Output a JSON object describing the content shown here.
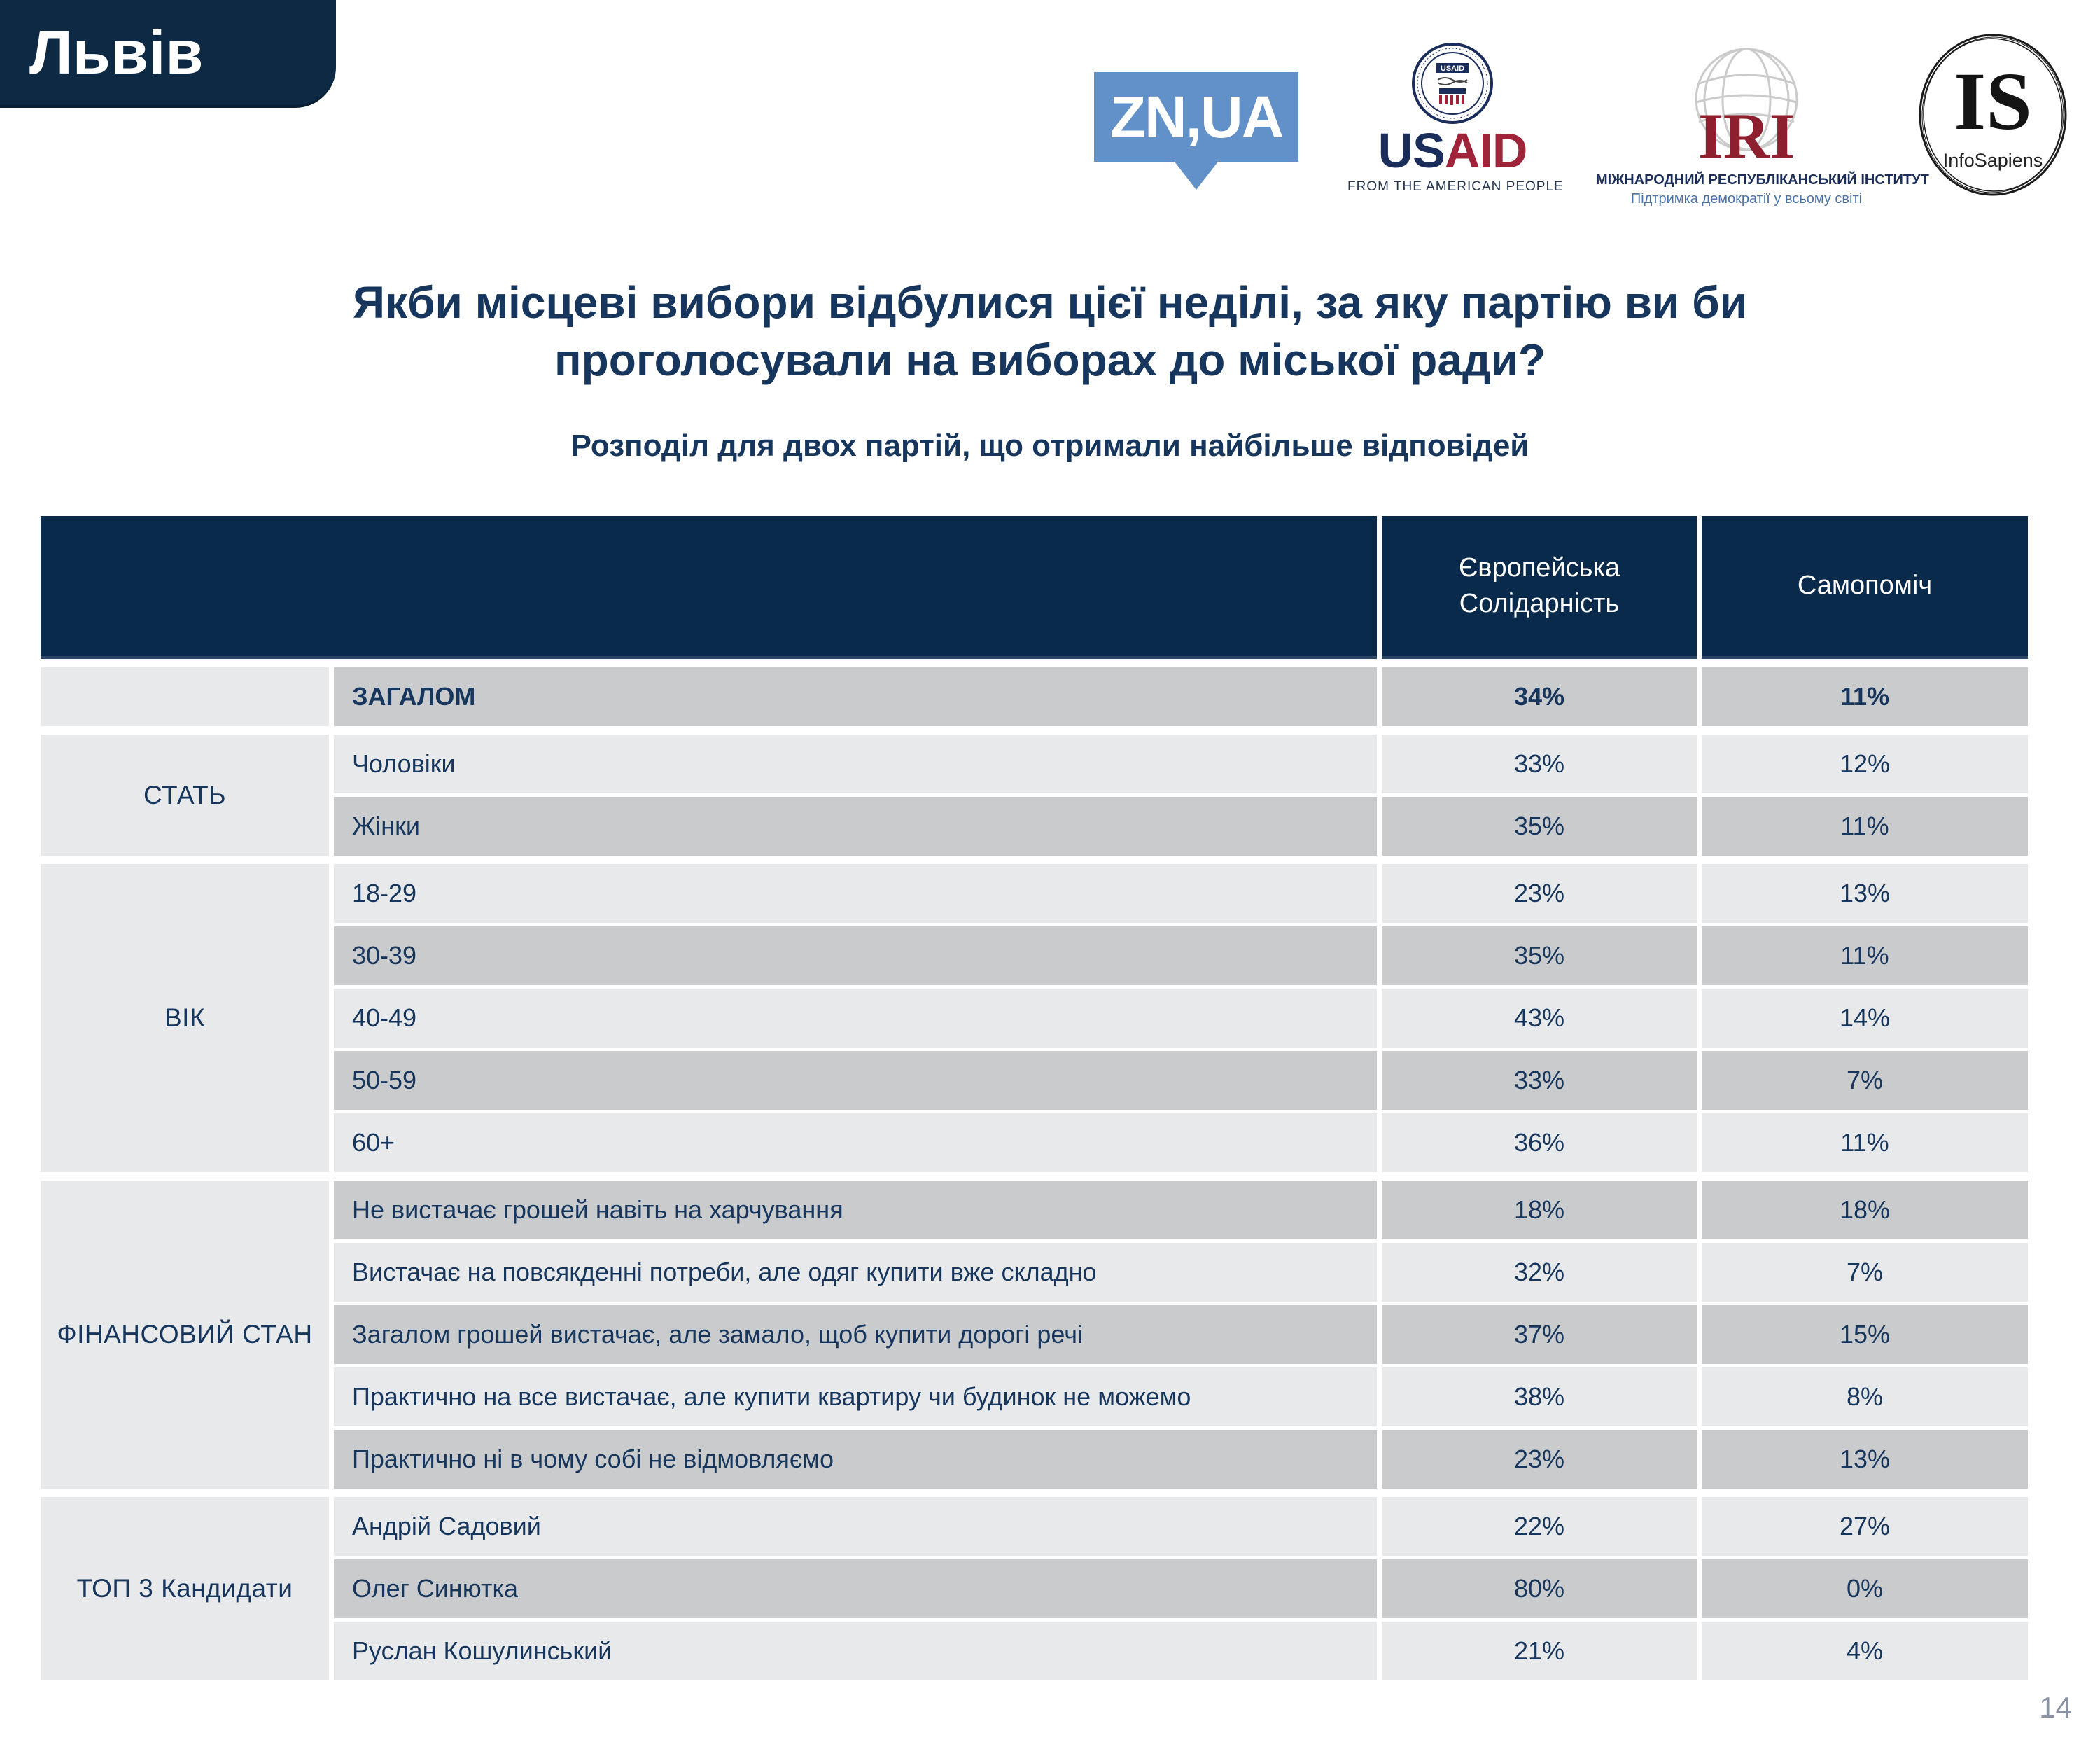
{
  "slide": {
    "region_label": "Львів",
    "title_line1": "Якби місцеві вибори відбулися цієї неділі, за яку партію ви би",
    "title_line2": "проголосували на виборах до міської ради?",
    "subtitle": "Розподіл для двох партій, що отримали найбільше відповідей",
    "page_number": "14"
  },
  "logos": {
    "znua": {
      "text": "ZN,UA",
      "bg_color": "#6191c8"
    },
    "usaid": {
      "seal_text": "USAID",
      "wordmark_us": "US",
      "wordmark_aid": "AID",
      "tagline": "FROM THE AMERICAN PEOPLE",
      "navy": "#1b2d5a",
      "red": "#9f2339"
    },
    "iri": {
      "acronym": "IRI",
      "line1": "МІЖНАРОДНИЙ РЕСПУБЛІКАНСЬКИЙ ІНСТИТУТ",
      "line2": "Підтримка демократії у всьому світі",
      "red": "#8e1f2e",
      "navy": "#1b2d5a",
      "blue": "#4a73a8"
    },
    "infosapiens": {
      "acronym": "IS",
      "name": "InfoSapiens"
    }
  },
  "table": {
    "header": {
      "party1": "Європейська Солідарність",
      "party2": "Самопоміч"
    },
    "colors": {
      "header_bg": "#0a2a4c",
      "row_dark": "#c9cbcd",
      "row_light": "#e8e9ea",
      "text": "#17365d"
    },
    "groups": [
      {
        "category": "",
        "rows": [
          {
            "label": "ЗАГАЛОМ",
            "bold": true,
            "p1": "34%",
            "p2": "11%"
          }
        ]
      },
      {
        "category": "СТАТЬ",
        "rows": [
          {
            "label": "Чоловіки",
            "p1": "33%",
            "p2": "12%"
          },
          {
            "label": "Жінки",
            "p1": "35%",
            "p2": "11%"
          }
        ]
      },
      {
        "category": "ВІК",
        "rows": [
          {
            "label": "18-29",
            "p1": "23%",
            "p2": "13%"
          },
          {
            "label": "30-39",
            "p1": "35%",
            "p2": "11%"
          },
          {
            "label": "40-49",
            "p1": "43%",
            "p2": "14%"
          },
          {
            "label": "50-59",
            "p1": "33%",
            "p2": "7%"
          },
          {
            "label": "60+",
            "p1": "36%",
            "p2": "11%"
          }
        ]
      },
      {
        "category": "ФІНАНСОВИЙ СТАН",
        "rows": [
          {
            "label": "Не вистачає грошей навіть на харчування",
            "p1": "18%",
            "p2": "18%"
          },
          {
            "label": "Вистачає на повсякденні потреби, але одяг купити вже складно",
            "p1": "32%",
            "p2": "7%"
          },
          {
            "label": "Загалом грошей вистачає, але замало, щоб купити дорогі речі",
            "p1": "37%",
            "p2": "15%"
          },
          {
            "label": "Практично на все вистачає, але купити квартиру чи будинок не можемо",
            "p1": "38%",
            "p2": "8%"
          },
          {
            "label": "Практично ні в чому собі не відмовляємо",
            "p1": "23%",
            "p2": "13%"
          }
        ]
      },
      {
        "category": "ТОП 3 Кандидати",
        "rows": [
          {
            "label": "Андрій Садовий",
            "p1": "22%",
            "p2": "27%"
          },
          {
            "label": "Олег Синютка",
            "p1": "80%",
            "p2": "0%"
          },
          {
            "label": "Руслан Кошулинський",
            "p1": "21%",
            "p2": "4%"
          }
        ]
      }
    ]
  }
}
